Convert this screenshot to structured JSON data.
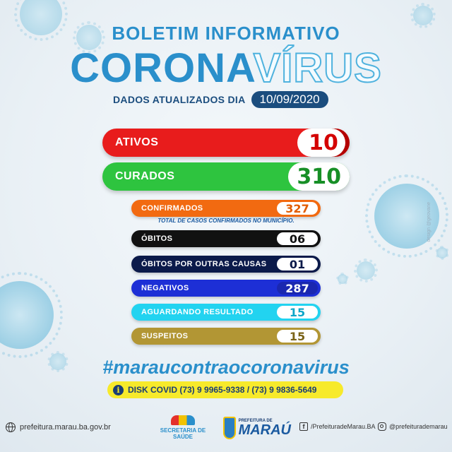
{
  "header": {
    "title": "BOLETIM INFORMATIVO",
    "headline_part1": "CORONA",
    "headline_part2": "VÍRUS",
    "updated_label": "DADOS ATUALIZADOS DIA",
    "updated_date": "10/09/2020"
  },
  "stats": {
    "ativos": {
      "label": "ATIVOS",
      "value": "10",
      "color": "#e81c1c"
    },
    "curados": {
      "label": "CURADOS",
      "value": "310",
      "color": "#2ec43f"
    },
    "confirmados": {
      "label": "CONFIRMADOS",
      "value": "327",
      "color": "#f26a11"
    },
    "confirmados_note": "TOTAL DE CASOS CONFIRMADOS NO MUNICÍPIO.",
    "obitos": {
      "label": "ÓBITOS",
      "value": "06",
      "color": "#111111"
    },
    "obitos_outras": {
      "label": "ÓBITOS POR OUTRAS CAUSAS",
      "value": "01",
      "color": "#0b1a4a"
    },
    "negativos": {
      "label": "NEGATIVOS",
      "value": "287",
      "color": "#1d2fd6"
    },
    "aguardando": {
      "label": "AGUARDANDO RESULTADO",
      "value": "15",
      "color": "#22d3f0"
    },
    "suspeitos": {
      "label": "SUSPEITOS",
      "value": "15",
      "color": "#b29634"
    }
  },
  "hashtag": "#maraucontraocoronavirus",
  "disk_covid": "DISK COVID  (73) 9 9965-9338 / (73) 9 9836-5649",
  "footer": {
    "website": "prefeitura.marau.ba.gov.br",
    "saude_logo_text_a": "SECRETARIA",
    "saude_logo_text_b": "DE SAÚDE",
    "pref_logo_small": "PREFEITURA DE",
    "pref_logo_big": "MARAÚ",
    "facebook": "/PrefeituradeMarau.BA",
    "instagram": "@prefeiturademarau"
  },
  "credit": "design @geovane"
}
